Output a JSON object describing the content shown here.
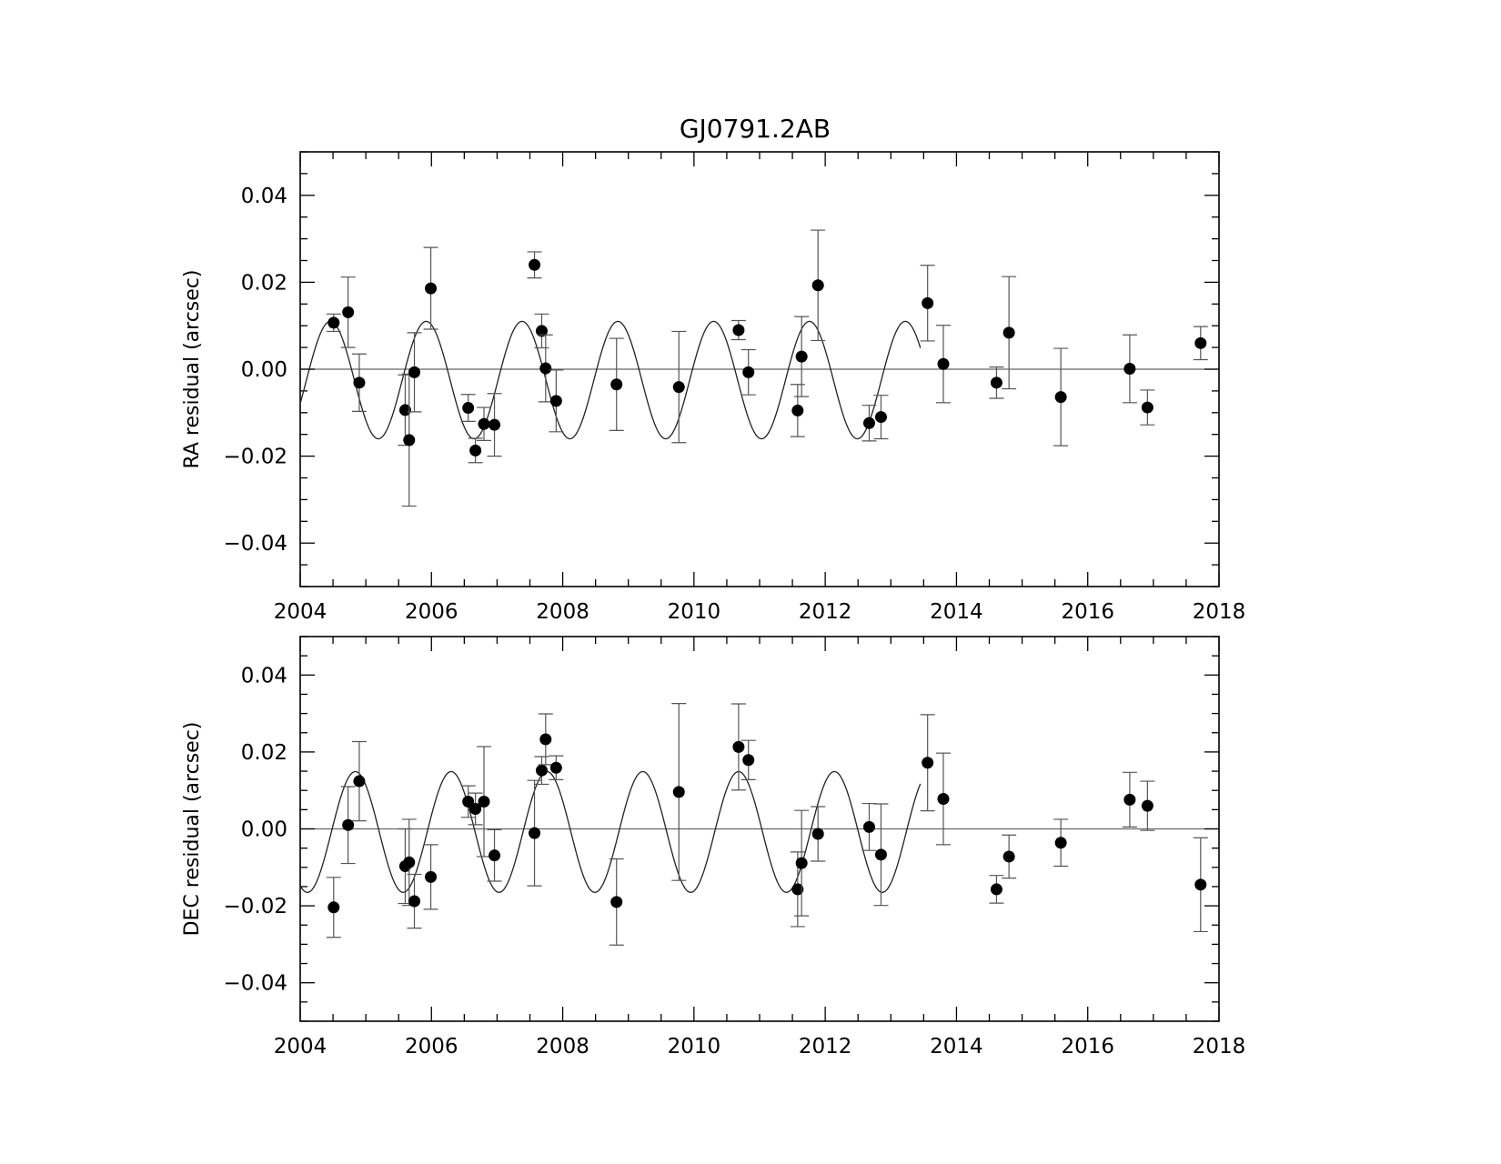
{
  "title": "GJ0791.2AB",
  "chart_data": [
    {
      "type": "scatter",
      "name": "ra",
      "ylabel": "RA residual (arcsec)",
      "xlabel": "",
      "xlim": [
        2004,
        2018
      ],
      "ylim": [
        -0.05,
        0.05
      ],
      "x_ticks": [
        "2004",
        "2006",
        "2008",
        "2010",
        "2012",
        "2014",
        "2016",
        "2018"
      ],
      "y_ticks": [
        "0.04",
        "0.02",
        "0.00",
        "−0.02",
        "−0.04"
      ],
      "y_tick_values": [
        0.04,
        0.02,
        0.0,
        -0.02,
        -0.04
      ],
      "zero_line": true,
      "model_curve": {
        "amplitude": 0.0135,
        "offset": -0.0025,
        "period_years": 1.46,
        "peak_epoch": 2004.46,
        "t_start": 2004.0,
        "t_end": 2013.45
      },
      "points": [
        {
          "x": 2004.51,
          "y": 0.0107,
          "err": 0.002
        },
        {
          "x": 2004.73,
          "y": 0.0131,
          "err": 0.0081
        },
        {
          "x": 2004.9,
          "y": -0.0031,
          "err": 0.0066
        },
        {
          "x": 2005.6,
          "y": -0.0094,
          "err": 0.0081
        },
        {
          "x": 2005.66,
          "y": -0.0163,
          "err": 0.0152
        },
        {
          "x": 2005.74,
          "y": -0.0007,
          "err": 0.0091
        },
        {
          "x": 2005.99,
          "y": 0.0186,
          "err": 0.0094
        },
        {
          "x": 2006.56,
          "y": -0.0089,
          "err": 0.0031
        },
        {
          "x": 2006.67,
          "y": -0.0187,
          "err": 0.0028
        },
        {
          "x": 2006.8,
          "y": -0.0126,
          "err": 0.0038
        },
        {
          "x": 2006.96,
          "y": -0.0128,
          "err": 0.0072
        },
        {
          "x": 2007.57,
          "y": 0.024,
          "err": 0.003
        },
        {
          "x": 2007.68,
          "y": 0.0088,
          "err": 0.0039
        },
        {
          "x": 2007.74,
          "y": 0.0002,
          "err": 0.0077
        },
        {
          "x": 2007.9,
          "y": -0.0073,
          "err": 0.0071
        },
        {
          "x": 2008.82,
          "y": -0.0035,
          "err": 0.0106
        },
        {
          "x": 2009.77,
          "y": -0.0041,
          "err": 0.0128
        },
        {
          "x": 2010.68,
          "y": 0.009,
          "err": 0.0022
        },
        {
          "x": 2010.83,
          "y": -0.0007,
          "err": 0.0052
        },
        {
          "x": 2011.58,
          "y": -0.0095,
          "err": 0.006
        },
        {
          "x": 2011.64,
          "y": 0.0029,
          "err": 0.0092
        },
        {
          "x": 2011.89,
          "y": 0.0193,
          "err": 0.0127
        },
        {
          "x": 2012.67,
          "y": -0.0124,
          "err": 0.0041
        },
        {
          "x": 2012.85,
          "y": -0.011,
          "err": 0.005
        },
        {
          "x": 2013.56,
          "y": 0.0152,
          "err": 0.0087
        },
        {
          "x": 2013.8,
          "y": 0.0012,
          "err": 0.0089
        },
        {
          "x": 2014.61,
          "y": -0.0031,
          "err": 0.0036
        },
        {
          "x": 2014.8,
          "y": 0.0084,
          "err": 0.0129
        },
        {
          "x": 2015.59,
          "y": -0.0064,
          "err": 0.0112
        },
        {
          "x": 2016.64,
          "y": 0.0001,
          "err": 0.0078
        },
        {
          "x": 2016.91,
          "y": -0.0088,
          "err": 0.004
        },
        {
          "x": 2017.72,
          "y": 0.006,
          "err": 0.0038
        }
      ]
    },
    {
      "type": "scatter",
      "name": "dec",
      "ylabel": "DEC residual (arcsec)",
      "xlabel": "",
      "xlim": [
        2004,
        2018
      ],
      "ylim": [
        -0.05,
        0.05
      ],
      "x_ticks": [
        "2004",
        "2006",
        "2008",
        "2010",
        "2012",
        "2014",
        "2016",
        "2018"
      ],
      "y_ticks": [
        "0.04",
        "0.02",
        "0.00",
        "−0.02",
        "−0.04"
      ],
      "y_tick_values": [
        0.04,
        0.02,
        0.0,
        -0.02,
        -0.04
      ],
      "zero_line": true,
      "model_curve": {
        "amplitude": 0.0157,
        "offset": -0.0008,
        "period_years": 1.46,
        "peak_epoch": 2004.84,
        "t_start": 2004.0,
        "t_end": 2013.45
      },
      "points": [
        {
          "x": 2004.51,
          "y": -0.0204,
          "err": 0.0078
        },
        {
          "x": 2004.73,
          "y": 0.001,
          "err": 0.01
        },
        {
          "x": 2004.9,
          "y": 0.0124,
          "err": 0.0103
        },
        {
          "x": 2005.6,
          "y": -0.0097,
          "err": 0.0097
        },
        {
          "x": 2005.66,
          "y": -0.0087,
          "err": 0.0112
        },
        {
          "x": 2005.74,
          "y": -0.0188,
          "err": 0.007
        },
        {
          "x": 2005.99,
          "y": -0.0125,
          "err": 0.0084
        },
        {
          "x": 2006.56,
          "y": 0.0071,
          "err": 0.0041
        },
        {
          "x": 2006.67,
          "y": 0.0052,
          "err": 0.0041
        },
        {
          "x": 2006.8,
          "y": 0.0071,
          "err": 0.0143
        },
        {
          "x": 2006.96,
          "y": -0.0069,
          "err": 0.0067
        },
        {
          "x": 2007.57,
          "y": -0.0011,
          "err": 0.0137
        },
        {
          "x": 2007.68,
          "y": 0.0152,
          "err": 0.0036
        },
        {
          "x": 2007.74,
          "y": 0.0233,
          "err": 0.0066
        },
        {
          "x": 2007.9,
          "y": 0.0159,
          "err": 0.0031
        },
        {
          "x": 2008.82,
          "y": -0.019,
          "err": 0.0112
        },
        {
          "x": 2009.77,
          "y": 0.0096,
          "err": 0.023
        },
        {
          "x": 2010.68,
          "y": 0.0213,
          "err": 0.0112
        },
        {
          "x": 2010.83,
          "y": 0.0179,
          "err": 0.0051
        },
        {
          "x": 2011.58,
          "y": -0.0157,
          "err": 0.0097
        },
        {
          "x": 2011.64,
          "y": -0.0089,
          "err": 0.0137
        },
        {
          "x": 2011.89,
          "y": -0.0013,
          "err": 0.0071
        },
        {
          "x": 2012.67,
          "y": 0.0005,
          "err": 0.0061
        },
        {
          "x": 2012.85,
          "y": -0.0067,
          "err": 0.0132
        },
        {
          "x": 2013.56,
          "y": 0.0172,
          "err": 0.0125
        },
        {
          "x": 2013.8,
          "y": 0.0078,
          "err": 0.0119
        },
        {
          "x": 2014.61,
          "y": -0.0157,
          "err": 0.0036
        },
        {
          "x": 2014.8,
          "y": -0.0072,
          "err": 0.0056
        },
        {
          "x": 2015.59,
          "y": -0.0036,
          "err": 0.0061
        },
        {
          "x": 2016.64,
          "y": 0.0076,
          "err": 0.0071
        },
        {
          "x": 2016.91,
          "y": 0.006,
          "err": 0.0064
        },
        {
          "x": 2017.72,
          "y": -0.0145,
          "err": 0.0122
        }
      ]
    }
  ]
}
